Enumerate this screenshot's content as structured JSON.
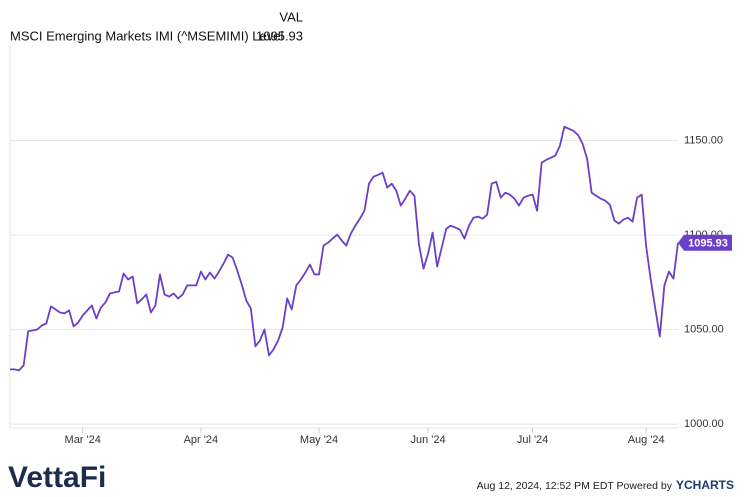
{
  "chart_data": {
    "type": "line",
    "legend_header": "VAL",
    "series": [
      {
        "name": "MSCI Emerging Markets IMI (^MSEMIMI) Level",
        "color": "#6a3fc9",
        "values": [
          1029.0,
          1029.0,
          1028.5,
          1031.1,
          1049.1,
          1049.6,
          1050.1,
          1052.2,
          1053.3,
          1062.3,
          1060.7,
          1059.1,
          1058.6,
          1060.2,
          1051.7,
          1053.8,
          1057.5,
          1060.2,
          1062.8,
          1055.9,
          1061.7,
          1064.4,
          1069.1,
          1069.7,
          1070.2,
          1079.7,
          1076.5,
          1078.1,
          1063.9,
          1066.0,
          1068.6,
          1059.1,
          1062.8,
          1079.2,
          1068.6,
          1067.5,
          1069.1,
          1066.5,
          1068.6,
          1073.4,
          1073.4,
          1073.4,
          1080.7,
          1076.5,
          1080.2,
          1077.0,
          1080.7,
          1085.0,
          1089.7,
          1088.1,
          1081.3,
          1073.9,
          1065.4,
          1061.2,
          1041.2,
          1044.3,
          1050.1,
          1036.4,
          1039.6,
          1044.3,
          1051.2,
          1066.5,
          1060.7,
          1073.4,
          1076.5,
          1080.2,
          1084.4,
          1079.2,
          1079.2,
          1094.5,
          1096.0,
          1098.2,
          1100.3,
          1097.1,
          1094.5,
          1100.8,
          1105.0,
          1108.7,
          1112.9,
          1127.2,
          1130.9,
          1131.9,
          1133.0,
          1125.1,
          1127.2,
          1123.5,
          1115.6,
          1119.3,
          1123.5,
          1120.8,
          1095.0,
          1082.3,
          1090.2,
          1101.3,
          1083.4,
          1093.4,
          1103.4,
          1105.0,
          1104.0,
          1102.9,
          1098.2,
          1105.0,
          1109.2,
          1109.8,
          1108.7,
          1110.8,
          1127.2,
          1128.2,
          1119.8,
          1122.4,
          1121.4,
          1119.3,
          1115.6,
          1119.8,
          1120.8,
          1121.4,
          1112.9,
          1138.3,
          1139.8,
          1140.9,
          1142.0,
          1147.2,
          1157.3,
          1156.2,
          1155.1,
          1153.0,
          1148.3,
          1140.4,
          1122.4,
          1120.8,
          1119.3,
          1118.2,
          1116.1,
          1107.7,
          1106.1,
          1108.2,
          1109.2,
          1107.1,
          1119.8,
          1121.4,
          1093.9,
          1076.5,
          1061.2,
          1046.4,
          1073.4,
          1080.7,
          1077.0,
          1095.93
        ]
      }
    ],
    "categories": [
      null,
      null,
      null,
      null,
      null,
      null,
      null,
      null,
      null,
      null,
      null,
      null,
      null,
      null,
      null,
      null,
      "Mar '24",
      null,
      null,
      null,
      null,
      null,
      null,
      null,
      null,
      null,
      null,
      null,
      null,
      null,
      null,
      null,
      null,
      null,
      null,
      null,
      null,
      null,
      null,
      null,
      null,
      null,
      "Apr '24",
      null,
      null,
      null,
      null,
      null,
      null,
      null,
      null,
      null,
      null,
      null,
      null,
      null,
      null,
      null,
      null,
      null,
      null,
      null,
      null,
      null,
      null,
      null,
      null,
      null,
      "May '24",
      null,
      null,
      null,
      null,
      null,
      null,
      null,
      null,
      null,
      null,
      null,
      null,
      null,
      null,
      null,
      null,
      null,
      null,
      null,
      null,
      null,
      null,
      null,
      "Jun '24",
      null,
      null,
      null,
      null,
      null,
      null,
      null,
      null,
      null,
      null,
      null,
      null,
      null,
      null,
      null,
      null,
      null,
      null,
      null,
      null,
      null,
      null,
      "Jul '24",
      null,
      null,
      null,
      null,
      null,
      null,
      null,
      null,
      null,
      null,
      null,
      null,
      null,
      null,
      null,
      null,
      null,
      null,
      null,
      null,
      null,
      null,
      null,
      null,
      "Aug '24",
      null,
      null,
      null,
      null,
      null,
      null,
      null
    ],
    "ylim": [
      998,
      1200
    ],
    "yticks": [
      {
        "value": 1000,
        "label": "1000.00"
      },
      {
        "value": 1050,
        "label": "1050.00"
      },
      {
        "value": 1100,
        "label": "1100.00"
      },
      {
        "value": 1150,
        "label": "1150.00"
      }
    ],
    "grid": true
  },
  "footer": {
    "timestamp": "Aug 12, 2024, 12:52 PM EDT Powered by",
    "brand": "YCHARTS",
    "logo": "VettaFi"
  }
}
